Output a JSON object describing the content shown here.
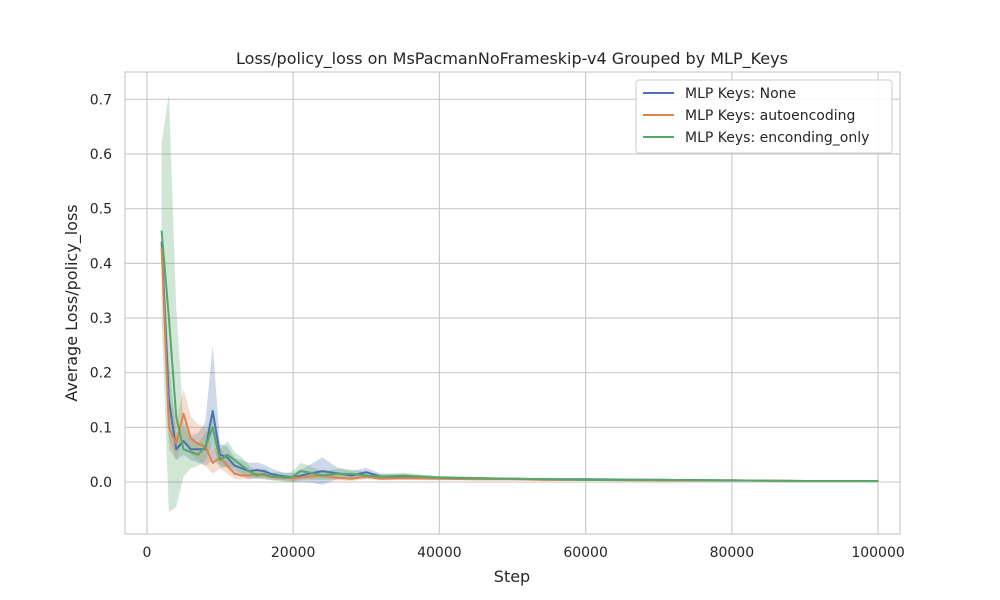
{
  "chart_data": {
    "type": "line",
    "title": "Loss/policy_loss on MsPacmanNoFrameskip-v4 Grouped by MLP_Keys",
    "xlabel": "Step",
    "ylabel": "Average Loss/policy_loss",
    "xlim": [
      -3000,
      103000
    ],
    "ylim": [
      -0.095,
      0.75
    ],
    "x_ticks": [
      0,
      20000,
      40000,
      60000,
      80000,
      100000
    ],
    "x_tick_labels": [
      "0",
      "20000",
      "40000",
      "60000",
      "80000",
      "100000"
    ],
    "y_ticks": [
      0.0,
      0.1,
      0.2,
      0.3,
      0.4,
      0.5,
      0.6,
      0.7
    ],
    "y_tick_labels": [
      "0.0",
      "0.1",
      "0.2",
      "0.3",
      "0.4",
      "0.5",
      "0.6",
      "0.7"
    ],
    "grid": true,
    "legend_position": "top-right",
    "series": [
      {
        "name": "MLP Keys: None",
        "color": "#4c72b0",
        "x": [
          2000,
          3000,
          4000,
          5000,
          6000,
          7000,
          8000,
          9000,
          10000,
          11000,
          12000,
          13000,
          14000,
          15000,
          16000,
          17000,
          18000,
          19000,
          20000,
          22000,
          24000,
          26000,
          28000,
          30000,
          32000,
          35000,
          40000,
          45000,
          50000,
          55000,
          60000,
          70000,
          80000,
          90000,
          100000
        ],
        "y": [
          0.44,
          0.15,
          0.06,
          0.075,
          0.06,
          0.06,
          0.06,
          0.13,
          0.05,
          0.045,
          0.03,
          0.025,
          0.02,
          0.022,
          0.02,
          0.015,
          0.012,
          0.01,
          0.008,
          0.015,
          0.02,
          0.016,
          0.012,
          0.018,
          0.01,
          0.01,
          0.008,
          0.007,
          0.006,
          0.005,
          0.005,
          0.004,
          0.003,
          0.002,
          0.002
        ],
        "lower": [
          0.42,
          0.08,
          0.04,
          0.05,
          0.04,
          0.035,
          0.03,
          0.04,
          0.03,
          0.025,
          0.015,
          0.01,
          0.005,
          0.008,
          0.008,
          0.005,
          0.004,
          0.003,
          0.0,
          0.0,
          -0.005,
          0.005,
          0.005,
          0.01,
          0.005,
          0.006,
          0.005,
          0.005,
          0.004,
          0.003,
          0.003,
          0.002,
          0.002,
          0.001,
          0.001
        ],
        "upper": [
          0.46,
          0.22,
          0.09,
          0.1,
          0.085,
          0.09,
          0.11,
          0.25,
          0.07,
          0.065,
          0.045,
          0.04,
          0.035,
          0.036,
          0.032,
          0.025,
          0.02,
          0.017,
          0.016,
          0.03,
          0.045,
          0.027,
          0.02,
          0.026,
          0.015,
          0.014,
          0.011,
          0.009,
          0.008,
          0.007,
          0.007,
          0.006,
          0.004,
          0.003,
          0.003
        ]
      },
      {
        "name": "MLP Keys: autoencoding",
        "color": "#dd8452",
        "x": [
          2000,
          3000,
          4000,
          5000,
          6000,
          7000,
          8000,
          9000,
          10000,
          11000,
          12000,
          13000,
          14000,
          15000,
          16000,
          17000,
          18000,
          19000,
          20000,
          22000,
          24000,
          26000,
          28000,
          30000,
          32000,
          35000,
          40000,
          45000,
          50000,
          55000,
          60000,
          70000,
          80000,
          90000,
          100000
        ],
        "y": [
          0.43,
          0.1,
          0.07,
          0.125,
          0.08,
          0.07,
          0.065,
          0.035,
          0.045,
          0.03,
          0.015,
          0.012,
          0.012,
          0.015,
          0.012,
          0.01,
          0.008,
          0.008,
          0.007,
          0.01,
          0.012,
          0.008,
          0.006,
          0.01,
          0.006,
          0.007,
          0.006,
          0.005,
          0.005,
          0.004,
          0.004,
          0.003,
          0.003,
          0.002,
          0.002
        ],
        "lower": [
          0.4,
          0.06,
          0.04,
          0.08,
          0.05,
          0.04,
          0.03,
          0.015,
          0.025,
          0.015,
          0.005,
          0.005,
          0.005,
          0.008,
          0.005,
          0.004,
          0.003,
          0.002,
          0.002,
          0.004,
          0.005,
          0.003,
          0.002,
          0.005,
          0.003,
          0.004,
          0.003,
          0.003,
          0.003,
          0.002,
          0.002,
          0.001,
          0.001,
          0.001,
          0.001
        ],
        "upper": [
          0.46,
          0.16,
          0.11,
          0.17,
          0.12,
          0.105,
          0.1,
          0.06,
          0.065,
          0.045,
          0.025,
          0.02,
          0.02,
          0.025,
          0.02,
          0.016,
          0.013,
          0.013,
          0.012,
          0.016,
          0.019,
          0.013,
          0.01,
          0.015,
          0.009,
          0.01,
          0.009,
          0.007,
          0.007,
          0.006,
          0.006,
          0.005,
          0.005,
          0.003,
          0.003
        ]
      },
      {
        "name": "MLP Keys: enconding_only",
        "color": "#55a868",
        "x": [
          2000,
          3000,
          4000,
          5000,
          6000,
          7000,
          8000,
          9000,
          10000,
          11000,
          12000,
          13000,
          14000,
          15000,
          16000,
          17000,
          18000,
          19000,
          20000,
          21000,
          22000,
          24000,
          26000,
          28000,
          30000,
          32000,
          35000,
          40000,
          45000,
          50000,
          55000,
          60000,
          70000,
          80000,
          90000,
          100000
        ],
        "y": [
          0.46,
          0.3,
          0.12,
          0.06,
          0.055,
          0.05,
          0.065,
          0.1,
          0.04,
          0.05,
          0.04,
          0.03,
          0.02,
          0.012,
          0.015,
          0.01,
          0.01,
          0.008,
          0.01,
          0.02,
          0.018,
          0.012,
          0.015,
          0.015,
          0.012,
          0.01,
          0.012,
          0.008,
          0.007,
          0.006,
          0.005,
          0.004,
          0.004,
          0.003,
          0.002,
          0.002
        ],
        "lower": [
          0.3,
          -0.055,
          -0.045,
          0.01,
          0.025,
          0.03,
          0.04,
          0.07,
          0.025,
          0.03,
          0.025,
          0.015,
          0.01,
          0.005,
          0.005,
          0.003,
          0.002,
          0.0,
          0.0,
          0.005,
          0.005,
          0.004,
          0.006,
          0.007,
          0.006,
          0.005,
          0.007,
          0.005,
          0.004,
          0.004,
          0.003,
          0.002,
          0.002,
          0.002,
          0.001,
          0.001
        ],
        "upper": [
          0.62,
          0.71,
          0.32,
          0.11,
          0.085,
          0.07,
          0.09,
          0.13,
          0.06,
          0.075,
          0.055,
          0.045,
          0.03,
          0.02,
          0.025,
          0.017,
          0.018,
          0.016,
          0.02,
          0.035,
          0.031,
          0.02,
          0.024,
          0.023,
          0.018,
          0.015,
          0.017,
          0.011,
          0.01,
          0.008,
          0.007,
          0.006,
          0.006,
          0.004,
          0.003,
          0.003
        ]
      }
    ]
  }
}
